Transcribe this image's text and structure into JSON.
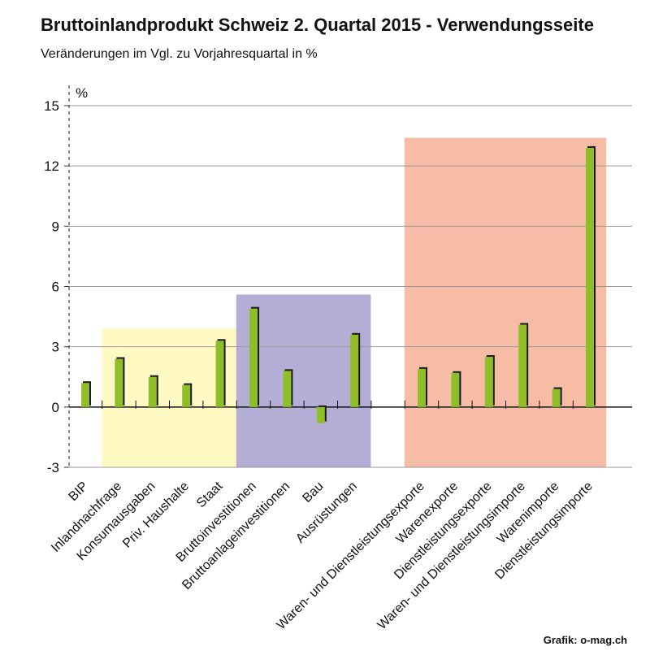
{
  "chart_data": {
    "type": "bar",
    "title": "Bruttoinlandprodukt Schweiz 2. Quartal 2015 - Verwendungsseite",
    "subtitle": "Veränderungen im Vgl. zu Vorjahresquartal in %",
    "ylabel": "%",
    "ylim": [
      -3,
      15
    ],
    "yticks": [
      15,
      12,
      9,
      6,
      3,
      0,
      -3
    ],
    "grid": true,
    "categories": [
      "BIP",
      "Inlandnachfrage",
      "Konsumausgaben",
      "Priv. Haushalte",
      "Staat",
      "Bruttoinvestitionen",
      "Bruttoanlageinvestitionen",
      "Bau",
      "Ausrüstungen",
      "",
      "Waren- und Dienstleistungsexporte",
      "Warenexporte",
      "Dienstleistungsexporte",
      "Waren- und Dienstleistungsimporte",
      "Warenimporte",
      "Dienstleistungsimporte"
    ],
    "values": [
      1.2,
      2.4,
      1.5,
      1.1,
      3.3,
      4.9,
      1.8,
      -0.8,
      3.6,
      null,
      1.9,
      1.7,
      2.5,
      4.1,
      0.9,
      12.9
    ],
    "bar_color": "#8fbe2a",
    "bar_shadow_color": "#1a1a1a",
    "highlight_groups": [
      {
        "categories": [
          "Inlandnachfrage",
          "Konsumausgaben",
          "Priv. Haushalte",
          "Staat"
        ],
        "upper": 3.9,
        "color": "#fff9c4"
      },
      {
        "categories": [
          "Bruttoinvestitionen",
          "Bruttoanlageinvestitionen",
          "Bau",
          "Ausrüstungen"
        ],
        "upper": 5.6,
        "color": "#b4aed6"
      },
      {
        "categories": [
          "Waren- und Dienstleistungsexporte",
          "Warenexporte",
          "Dienstleistungsexporte",
          "Waren- und Dienstleistungsimporte",
          "Warenimporte",
          "Dienstleistungsimporte"
        ],
        "upper": 13.4,
        "color": "#f7bca6"
      }
    ]
  },
  "credit": "Grafik: o-mag.ch"
}
